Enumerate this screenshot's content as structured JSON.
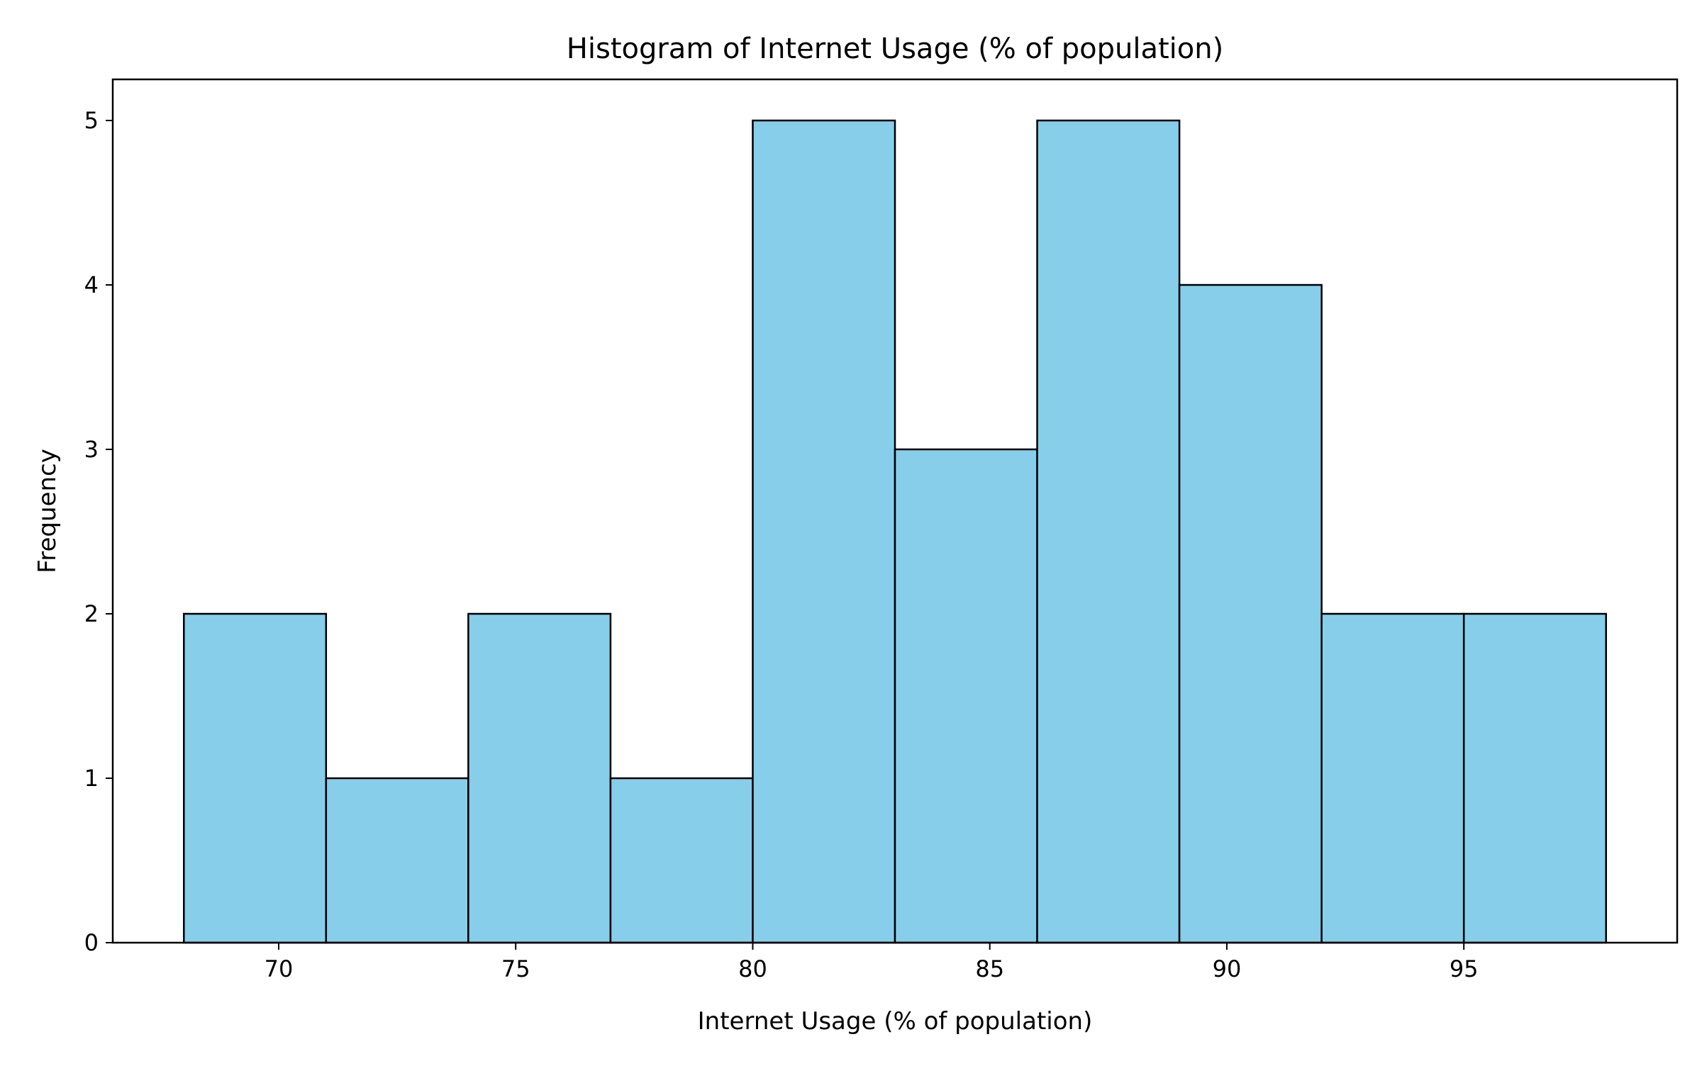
{
  "chart_data": {
    "type": "bar",
    "histogram": true,
    "title": "Histogram of Internet Usage (% of population)",
    "xlabel": "Internet Usage (% of population)",
    "ylabel": "Frequency",
    "bins": [
      {
        "start": 68,
        "end": 71,
        "count": 2
      },
      {
        "start": 71,
        "end": 74,
        "count": 1
      },
      {
        "start": 74,
        "end": 77,
        "count": 2
      },
      {
        "start": 77,
        "end": 80,
        "count": 1
      },
      {
        "start": 80,
        "end": 83,
        "count": 5
      },
      {
        "start": 83,
        "end": 86,
        "count": 3
      },
      {
        "start": 86,
        "end": 89,
        "count": 5
      },
      {
        "start": 89,
        "end": 92,
        "count": 4
      },
      {
        "start": 92,
        "end": 95,
        "count": 2
      },
      {
        "start": 95,
        "end": 98,
        "count": 2
      }
    ],
    "xlim": [
      66.5,
      99.5
    ],
    "ylim": [
      0,
      5.25
    ],
    "xticks": [
      70,
      75,
      80,
      85,
      90,
      95
    ],
    "yticks": [
      0,
      1,
      2,
      3,
      4,
      5
    ],
    "grid": false,
    "legend": "none",
    "bar_color": "#87CEEB",
    "edge_color": "#000000"
  }
}
